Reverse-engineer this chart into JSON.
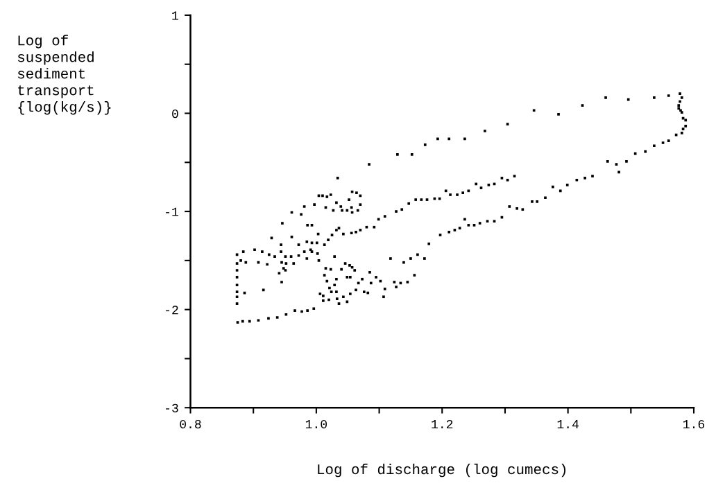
{
  "chart_data": {
    "type": "scatter",
    "xlabel": "Log of discharge (log cumecs)",
    "ylabel": "Log of\nsuspended\nsediment\ntransport\n{log(kg/s)}",
    "xlim": [
      0.8,
      1.6
    ],
    "ylim": [
      -3,
      1
    ],
    "xticks": [
      {
        "value": 0.8,
        "label": "0.8"
      },
      {
        "value": 0.9,
        "label": null
      },
      {
        "value": 1.0,
        "label": "1.0"
      },
      {
        "value": 1.1,
        "label": null
      },
      {
        "value": 1.2,
        "label": "1.2"
      },
      {
        "value": 1.3,
        "label": null
      },
      {
        "value": 1.4,
        "label": "1.4"
      },
      {
        "value": 1.5,
        "label": null
      },
      {
        "value": 1.6,
        "label": "1.6"
      }
    ],
    "yticks": [
      -3,
      {
        "value": -2.5,
        "label": null
      },
      -2,
      {
        "value": -1.5,
        "label": null
      },
      -1,
      {
        "value": -0.5,
        "label": null
      },
      0,
      {
        "value": 0.5,
        "label": null
      },
      1
    ],
    "grid": false,
    "legend": false,
    "marker": "square",
    "series": [
      {
        "color": "#000000",
        "x": [
          1.173,
          1.193,
          1.211,
          1.236,
          1.268,
          1.304,
          1.346,
          1.385,
          1.423,
          1.46,
          1.496,
          1.537,
          1.56,
          1.578,
          1.581,
          1.578,
          1.576,
          1.576,
          1.579,
          1.581,
          1.583,
          1.587,
          1.587,
          1.583,
          1.581,
          1.572,
          1.56,
          1.551,
          1.537,
          1.523,
          1.507,
          1.493,
          1.477,
          1.481,
          1.463,
          1.439,
          1.427,
          1.414,
          1.399,
          1.388,
          1.376,
          1.364,
          1.351,
          1.343,
          1.328,
          1.319,
          1.307,
          1.295,
          1.283,
          1.272,
          1.26,
          1.251,
          1.242,
          1.236,
          1.228,
          1.22,
          1.211,
          1.197,
          1.179,
          1.172,
          1.161,
          1.15,
          1.139,
          1.118,
          1.156,
          1.145,
          1.134,
          1.127,
          1.124,
          1.107,
          1.109,
          1.102,
          1.095,
          1.087,
          1.085,
          1.082,
          1.076,
          1.073,
          1.067,
          1.063,
          1.054,
          1.049,
          1.043,
          1.036,
          1.033,
          1.02,
          1.011,
          1.011,
          1.006,
          1.024,
          1.032,
          1.021,
          1.029,
          1.032,
          1.017,
          1.013,
          1.023,
          1.015,
          1.004,
          1.029,
          1.04,
          1.046,
          1.053,
          1.057,
          1.061,
          1.049,
          1.054,
          1.315,
          1.304,
          1.295,
          1.283,
          1.274,
          1.262,
          1.254,
          1.242,
          1.233,
          1.224,
          1.213,
          1.206,
          1.196,
          1.188,
          1.176,
          1.167,
          1.158,
          1.147,
          1.136,
          1.127,
          1.109,
          1.099,
          1.092,
          1.08,
          1.07,
          1.063,
          1.056,
          1.043,
          1.036,
          1.032,
          1.025,
          1.019,
          1.013,
          1.003,
          1.001,
          0.993,
          0.991,
          0.985,
          0.981,
          0.972,
          0.961,
          0.944,
          0.929,
          0.946,
          0.961,
          0.976,
          0.986,
          0.993,
          1.034,
          1.004,
          1.01,
          1.017,
          1.023,
          1.032,
          1.039,
          1.052,
          1.057,
          1.064,
          1.07,
          1.07,
          1.066,
          1.056,
          1.049,
          1.041,
          1.027,
          1.015,
          0.997,
          0.981,
          1.057,
          1.084,
          1.129,
          1.152,
          0.874,
          0.884,
          0.902,
          0.914,
          0.925,
          0.934,
          0.944,
          0.951,
          0.96,
          0.972,
          0.985,
          0.993,
          1.002,
          0.88,
          0.888,
          0.908,
          0.922,
          0.945,
          0.952,
          0.964,
          0.948,
          0.941,
          0.951,
          0.945,
          0.886,
          0.916,
          0.874,
          0.874,
          0.874,
          0.874,
          0.874,
          0.874,
          0.874,
          0.875,
          0.883,
          0.894,
          0.908,
          0.924,
          0.938,
          0.952,
          0.966,
          0.977,
          0.986,
          0.996
        ],
        "values": [
          -0.32,
          -0.26,
          -0.26,
          -0.26,
          -0.18,
          -0.11,
          0.03,
          -0.01,
          0.08,
          0.16,
          0.14,
          0.16,
          0.18,
          0.2,
          0.16,
          0.12,
          0.08,
          0.05,
          0.03,
          0.01,
          -0.05,
          -0.07,
          -0.13,
          -0.16,
          -0.2,
          -0.22,
          -0.28,
          -0.3,
          -0.33,
          -0.39,
          -0.41,
          -0.49,
          -0.52,
          -0.6,
          -0.49,
          -0.64,
          -0.66,
          -0.68,
          -0.73,
          -0.79,
          -0.75,
          -0.86,
          -0.9,
          -0.9,
          -0.98,
          -0.97,
          -0.95,
          -1.06,
          -1.1,
          -1.1,
          -1.12,
          -1.14,
          -1.14,
          -1.08,
          -1.17,
          -1.19,
          -1.21,
          -1.24,
          -1.33,
          -1.48,
          -1.44,
          -1.48,
          -1.52,
          -1.48,
          -1.65,
          -1.72,
          -1.73,
          -1.77,
          -1.72,
          -1.87,
          -1.79,
          -1.71,
          -1.67,
          -1.73,
          -1.62,
          -1.83,
          -1.82,
          -1.69,
          -1.73,
          -1.8,
          -1.84,
          -1.92,
          -1.87,
          -1.94,
          -1.89,
          -1.9,
          -1.91,
          -1.86,
          -1.84,
          -1.82,
          -1.82,
          -1.78,
          -1.75,
          -1.69,
          -1.71,
          -1.65,
          -1.59,
          -1.58,
          -1.5,
          -1.46,
          -1.59,
          -1.53,
          -1.55,
          -1.57,
          -1.6,
          -1.67,
          -1.67,
          -0.64,
          -0.68,
          -0.66,
          -0.72,
          -0.73,
          -0.76,
          -0.72,
          -0.79,
          -0.81,
          -0.83,
          -0.83,
          -0.79,
          -0.87,
          -0.87,
          -0.88,
          -0.88,
          -0.88,
          -0.92,
          -0.98,
          -1.0,
          -1.05,
          -1.08,
          -1.16,
          -1.16,
          -1.19,
          -1.21,
          -1.22,
          -1.23,
          -1.17,
          -1.19,
          -1.24,
          -1.29,
          -1.34,
          -1.23,
          -1.32,
          -1.32,
          -1.39,
          -1.31,
          -1.41,
          -1.34,
          -1.26,
          -1.34,
          -1.27,
          -1.12,
          -1.01,
          -1.03,
          -1.14,
          -1.14,
          -0.66,
          -0.84,
          -0.84,
          -0.85,
          -0.83,
          -0.91,
          -0.95,
          -0.88,
          -0.8,
          -0.81,
          -0.84,
          -0.93,
          -0.99,
          -0.96,
          -0.99,
          -0.99,
          -0.99,
          -0.96,
          -0.93,
          -0.95,
          -1.01,
          -0.52,
          -0.42,
          -0.42,
          -1.44,
          -1.41,
          -1.39,
          -1.41,
          -1.44,
          -1.46,
          -1.41,
          -1.46,
          -1.46,
          -1.45,
          -1.48,
          -1.41,
          -1.43,
          -1.5,
          -1.52,
          -1.52,
          -1.54,
          -1.52,
          -1.53,
          -1.53,
          -1.58,
          -1.63,
          -1.6,
          -1.72,
          -1.83,
          -1.8,
          -1.53,
          -1.6,
          -1.67,
          -1.75,
          -1.82,
          -1.87,
          -1.94,
          -2.13,
          -2.12,
          -2.12,
          -2.11,
          -2.09,
          -2.08,
          -2.05,
          -2.01,
          -2.02,
          -2.01,
          -1.99
        ]
      }
    ]
  }
}
